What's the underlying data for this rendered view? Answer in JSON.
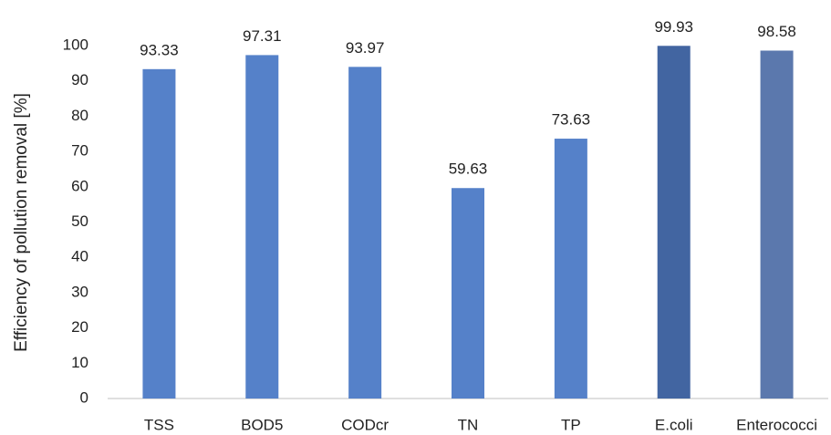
{
  "chart_data": {
    "type": "bar",
    "y_label": "Efficiency of pollution removal [%]",
    "categories": [
      "TSS",
      "BOD5",
      "CODcr",
      "TN",
      "TP",
      "E.coli",
      "Enterococci"
    ],
    "values": [
      93.33,
      97.31,
      93.97,
      59.63,
      73.63,
      99.93,
      98.58
    ],
    "colors": [
      "#5581c9",
      "#5581c9",
      "#5581c9",
      "#5581c9",
      "#5581c9",
      "#4265a1",
      "#5b78ad"
    ],
    "ylim": [
      0,
      100
    ],
    "yticks": [
      0,
      10,
      20,
      30,
      40,
      50,
      60,
      70,
      80,
      90,
      100
    ],
    "grid": false
  }
}
